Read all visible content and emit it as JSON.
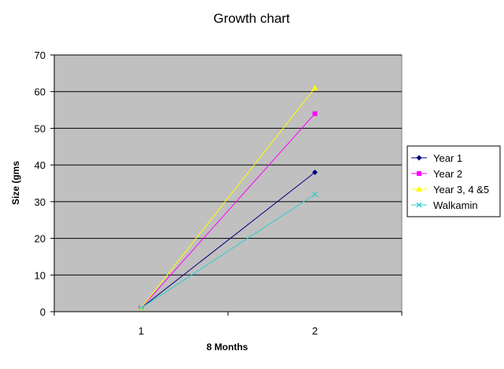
{
  "chart_data": {
    "type": "line",
    "title": "Growth chart",
    "xlabel": "8 Months",
    "ylabel": "Size (gms",
    "categories": [
      "1",
      "2"
    ],
    "ylim": [
      0,
      70
    ],
    "yticks": [
      0,
      10,
      20,
      30,
      40,
      50,
      60,
      70
    ],
    "grid": true,
    "plot_background": "#c0c0c0",
    "legend_position": "right",
    "series": [
      {
        "name": "Year 1",
        "values": [
          1,
          38
        ],
        "color": "#000080",
        "marker": "diamond"
      },
      {
        "name": "Year 2",
        "values": [
          1,
          54
        ],
        "color": "#ff00ff",
        "marker": "square"
      },
      {
        "name": "Year 3, 4 &5",
        "values": [
          1,
          61
        ],
        "color": "#ffff00",
        "marker": "triangle"
      },
      {
        "name": "Walkamin",
        "values": [
          1,
          32
        ],
        "color": "#33cccc",
        "marker": "x"
      }
    ]
  }
}
